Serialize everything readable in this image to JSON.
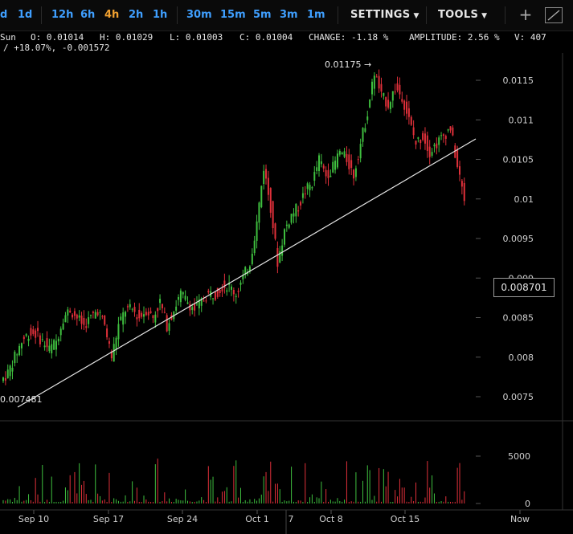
{
  "toolbar": {
    "timeframes": [
      "d",
      "1d",
      "12h",
      "6h",
      "4h",
      "2h",
      "1h",
      "30m",
      "15m",
      "5m",
      "3m",
      "1m"
    ],
    "active_timeframe": "4h",
    "settings_label": "SETTINGS",
    "tools_label": "TOOLS",
    "add_icon": "plus-icon",
    "line_tool_icon": "trendline-icon"
  },
  "info": {
    "day": "Sun",
    "open": "O: 0.01014",
    "high": "H: 0.01029",
    "low": "L: 0.01003",
    "close": "C: 0.01004",
    "change": "CHANGE: -1.18 %",
    "amplitude": "AMPLITUDE: 2.56 %",
    "volume": "V: 407",
    "line2": "/ +18.07%, -0.001572"
  },
  "markers": {
    "high": "0.01175 →",
    "low": "0.007481",
    "last_price": "0.008701"
  },
  "colors": {
    "up": "#3fbf3f",
    "down": "#e0303a",
    "background": "#000000",
    "trendline": "#e6e6e6"
  },
  "chart_data": {
    "type": "candlestick",
    "price_axis_ticks": [
      "0.0115",
      "0.011",
      "0.0105",
      "0.01",
      "0.0095",
      "0.009",
      "0.0085",
      "0.008",
      "0.0075"
    ],
    "volume_axis_ticks": [
      "5000",
      "0"
    ],
    "x_tick_labels": [
      "Sep 10",
      "Sep 17",
      "Sep 24",
      "Oct 1",
      "Oct 8",
      "Oct 15",
      "Now"
    ],
    "extra_x_label": "7",
    "ylim": [
      0.0073,
      0.0118
    ],
    "trendline": {
      "from": [
        0.00745,
        "Sep 4"
      ],
      "to": [
        0.01065,
        "Oct 22"
      ]
    },
    "series_close": [
      0.0078,
      0.008,
      0.0082,
      0.0083,
      0.0083,
      0.0082,
      0.0081,
      0.0082,
      0.0085,
      0.0086,
      0.0085,
      0.0084,
      0.0085,
      0.0086,
      0.0084,
      0.008,
      0.0084,
      0.0086,
      0.0086,
      0.0085,
      0.0086,
      0.0085,
      0.0087,
      0.0084,
      0.0086,
      0.0088,
      0.0087,
      0.0086,
      0.0087,
      0.0088,
      0.0088,
      0.0089,
      0.0089,
      0.0088,
      0.009,
      0.0092,
      0.0097,
      0.0104,
      0.0099,
      0.0092,
      0.0096,
      0.0098,
      0.0099,
      0.0101,
      0.0102,
      0.0105,
      0.0103,
      0.0104,
      0.0106,
      0.0105,
      0.0103,
      0.0107,
      0.0111,
      0.0116,
      0.0113,
      0.0112,
      0.0114,
      0.0113,
      0.011,
      0.0107,
      0.0108,
      0.0106,
      0.0107,
      0.0108,
      0.0109,
      0.0104,
      0.01
    ]
  }
}
